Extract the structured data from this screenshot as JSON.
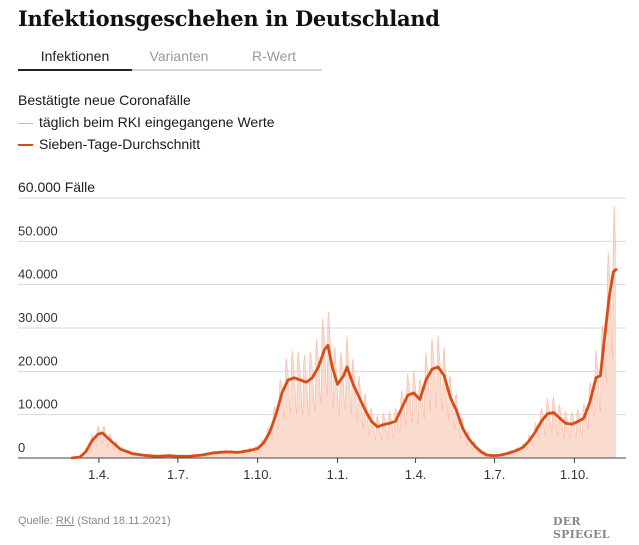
{
  "title": "Infektionsgeschehen in Deutschland",
  "tabs": [
    {
      "label": "Infektionen",
      "active": true
    },
    {
      "label": "Varianten",
      "active": false
    },
    {
      "label": "R-Wert",
      "active": false
    }
  ],
  "legend": {
    "heading": "Bestätigte neue Coronafälle",
    "daily": "täglich beim RKI eingegangene Werte",
    "average": "Sieben-Tage-Durchschnitt"
  },
  "colors": {
    "daily": "#f4a58a",
    "average": "#d64d17",
    "area": "#fadbd0",
    "grid": "#d9d9d9"
  },
  "footer": {
    "prefix": "Quelle: ",
    "source": "RKI",
    "suffix": " (Stand 18.11.2021)",
    "logo": "DER SPIEGEL"
  },
  "chart_data": {
    "type": "line",
    "ylabel": "60.000 Fälle",
    "ylim": [
      0,
      60000
    ],
    "yticks": [
      {
        "value": 0,
        "label": "0"
      },
      {
        "value": 10000,
        "label": "10.000"
      },
      {
        "value": 20000,
        "label": "20.000"
      },
      {
        "value": 30000,
        "label": "30.000"
      },
      {
        "value": 40000,
        "label": "40.000"
      },
      {
        "value": 50000,
        "label": "50.000"
      },
      {
        "value": 60000,
        "label": "60.000 Fälle"
      }
    ],
    "xlim": [
      "2020-03-01",
      "2021-11-18"
    ],
    "xticks": [
      {
        "date": "2020-04-01",
        "label": "1.4."
      },
      {
        "date": "2020-07-01",
        "label": "1.7."
      },
      {
        "date": "2020-10-01",
        "label": "1.10."
      },
      {
        "date": "2021-01-01",
        "label": "1.1."
      },
      {
        "date": "2021-04-01",
        "label": "1.4."
      },
      {
        "date": "2021-07-01",
        "label": "1.7."
      },
      {
        "date": "2021-10-01",
        "label": "1.10."
      }
    ],
    "grid": true,
    "series": [
      {
        "name": "Sieben-Tage-Durchschnitt",
        "points": [
          [
            "2020-03-01",
            0
          ],
          [
            "2020-03-10",
            200
          ],
          [
            "2020-03-17",
            1500
          ],
          [
            "2020-03-24",
            4000
          ],
          [
            "2020-03-31",
            5500
          ],
          [
            "2020-04-05",
            5800
          ],
          [
            "2020-04-12",
            4500
          ],
          [
            "2020-04-19",
            3200
          ],
          [
            "2020-04-26",
            2000
          ],
          [
            "2020-05-10",
            1000
          ],
          [
            "2020-05-24",
            600
          ],
          [
            "2020-06-07",
            400
          ],
          [
            "2020-06-21",
            550
          ],
          [
            "2020-07-01",
            400
          ],
          [
            "2020-07-15",
            450
          ],
          [
            "2020-07-29",
            700
          ],
          [
            "2020-08-12",
            1200
          ],
          [
            "2020-08-26",
            1400
          ],
          [
            "2020-09-09",
            1300
          ],
          [
            "2020-09-23",
            1800
          ],
          [
            "2020-10-01",
            2200
          ],
          [
            "2020-10-08",
            3500
          ],
          [
            "2020-10-15",
            6000
          ],
          [
            "2020-10-22",
            10000
          ],
          [
            "2020-10-29",
            15000
          ],
          [
            "2020-11-05",
            18000
          ],
          [
            "2020-11-12",
            18500
          ],
          [
            "2020-11-19",
            18000
          ],
          [
            "2020-11-26",
            17500
          ],
          [
            "2020-12-03",
            18500
          ],
          [
            "2020-12-10",
            21000
          ],
          [
            "2020-12-17",
            25000
          ],
          [
            "2020-12-21",
            26000
          ],
          [
            "2020-12-26",
            21000
          ],
          [
            "2021-01-01",
            17000
          ],
          [
            "2021-01-08",
            19000
          ],
          [
            "2021-01-12",
            21000
          ],
          [
            "2021-01-19",
            17000
          ],
          [
            "2021-01-26",
            14000
          ],
          [
            "2021-02-02",
            11000
          ],
          [
            "2021-02-09",
            8500
          ],
          [
            "2021-02-16",
            7200
          ],
          [
            "2021-02-23",
            7700
          ],
          [
            "2021-03-02",
            8000
          ],
          [
            "2021-03-09",
            8500
          ],
          [
            "2021-03-16",
            11500
          ],
          [
            "2021-03-23",
            14500
          ],
          [
            "2021-03-30",
            15000
          ],
          [
            "2021-04-06",
            13500
          ],
          [
            "2021-04-13",
            18000
          ],
          [
            "2021-04-20",
            20500
          ],
          [
            "2021-04-27",
            21000
          ],
          [
            "2021-05-04",
            19000
          ],
          [
            "2021-05-11",
            14000
          ],
          [
            "2021-05-18",
            11000
          ],
          [
            "2021-05-25",
            7000
          ],
          [
            "2021-06-01",
            4500
          ],
          [
            "2021-06-08",
            2800
          ],
          [
            "2021-06-15",
            1500
          ],
          [
            "2021-06-22",
            700
          ],
          [
            "2021-06-29",
            550
          ],
          [
            "2021-07-06",
            600
          ],
          [
            "2021-07-13",
            900
          ],
          [
            "2021-07-20",
            1300
          ],
          [
            "2021-07-27",
            1800
          ],
          [
            "2021-08-03",
            2500
          ],
          [
            "2021-08-10",
            4000
          ],
          [
            "2021-08-17",
            6000
          ],
          [
            "2021-08-24",
            8500
          ],
          [
            "2021-08-31",
            10200
          ],
          [
            "2021-09-07",
            10500
          ],
          [
            "2021-09-14",
            9200
          ],
          [
            "2021-09-21",
            8000
          ],
          [
            "2021-09-28",
            7800
          ],
          [
            "2021-10-05",
            8400
          ],
          [
            "2021-10-12",
            9200
          ],
          [
            "2021-10-19",
            13000
          ],
          [
            "2021-10-26",
            18500
          ],
          [
            "2021-10-31",
            19000
          ],
          [
            "2021-11-05",
            28000
          ],
          [
            "2021-11-10",
            37000
          ],
          [
            "2021-11-15",
            43000
          ],
          [
            "2021-11-18",
            43500
          ]
        ]
      }
    ]
  }
}
